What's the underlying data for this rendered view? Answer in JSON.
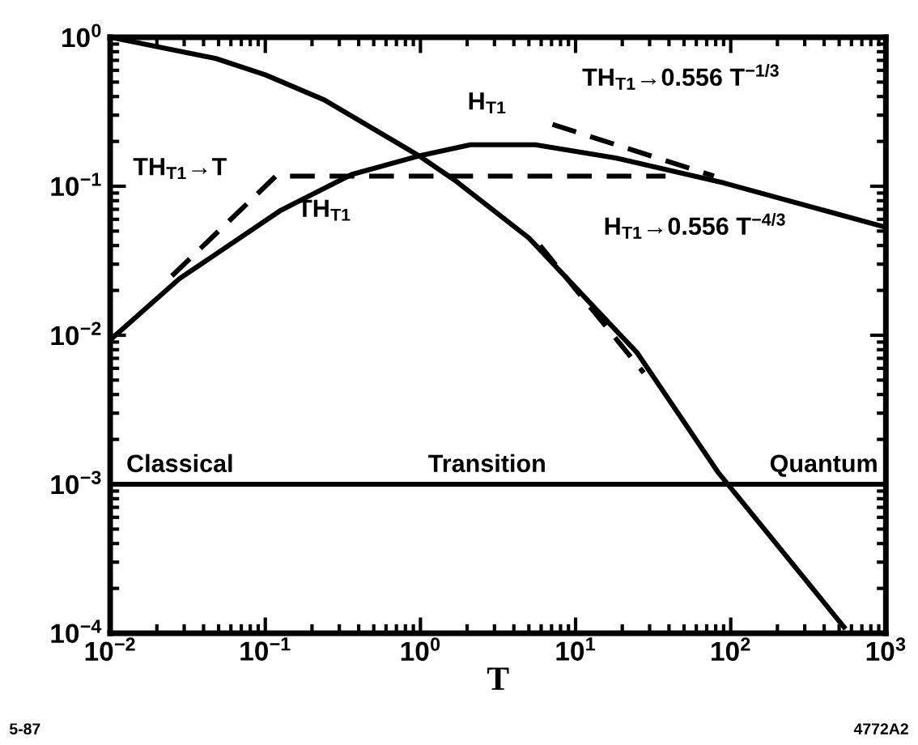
{
  "chart_data": {
    "type": "line",
    "xlabel": "T",
    "log": "xy",
    "grid": false,
    "legend": false,
    "xlim": [
      0.01,
      1000
    ],
    "ylim": [
      0.0001,
      1
    ],
    "xticks": [
      {
        "value": 0.01,
        "label": "10$^{−2}$"
      },
      {
        "value": 0.1,
        "label": "10$^{−1}$"
      },
      {
        "value": 1,
        "label": "10$^{0}$"
      },
      {
        "value": 10,
        "label": "10$^{1}$"
      },
      {
        "value": 100,
        "label": "10$^{2}$"
      },
      {
        "value": 1000,
        "label": "10$^{3}$"
      }
    ],
    "yticks": [
      {
        "value": 0.0001,
        "label": "10$^{−4}$"
      },
      {
        "value": 0.001,
        "label": "10$^{−3}$"
      },
      {
        "value": 0.01,
        "label": "10$^{−2}$"
      },
      {
        "value": 0.1,
        "label": "10$^{−1}$"
      },
      {
        "value": 1,
        "label": "10$^{0}$"
      }
    ],
    "series": [
      {
        "color": "#000000",
        "line_style": "solid",
        "x": [
          0.01,
          0.048,
          0.1,
          0.24,
          0.98,
          1.66,
          5,
          25,
          83,
          537
        ],
        "values": [
          1.0,
          0.72,
          0.56,
          0.38,
          0.16,
          0.11,
          0.045,
          0.0076,
          0.0012,
          0.00011
        ]
      },
      {
        "color": "#000000",
        "line_style": "solid",
        "x": [
          0.01,
          0.028,
          0.126,
          0.36,
          0.98,
          2.1,
          5.5,
          18,
          91,
          1000
        ],
        "values": [
          0.0093,
          0.024,
          0.069,
          0.12,
          0.16,
          0.19,
          0.19,
          0.155,
          0.105,
          0.053
        ]
      },
      {
        "color": "#000000",
        "line_style": "dashed",
        "x": [
          0.025,
          0.117,
          38
        ],
        "values": [
          0.025,
          0.117,
          0.117
        ]
      },
      {
        "color": "#000000",
        "line_style": "dashed",
        "x": [
          7.1,
          78
        ],
        "values": [
          0.26,
          0.117
        ]
      },
      {
        "color": "#000000",
        "line_style": "dashed",
        "x": [
          5.9,
          27.5
        ],
        "values": [
          0.04,
          0.0056
        ]
      },
      {
        "color": "#000000",
        "line_style": "solid",
        "x": [
          0.01,
          1000
        ],
        "values": [
          0.001,
          0.001
        ]
      }
    ],
    "annotations": [
      "5-87",
      "4772A2",
      "H$_{T1}$",
      "TH$_{T1}$",
      "TH$_{T1}$→T",
      "TH$_{T1}$→0.556 T$^{−1/3}$",
      "H$_{T1}$→0.556 T$^{−4/3}$",
      "Classical",
      "Transition",
      "Quantum"
    ]
  }
}
